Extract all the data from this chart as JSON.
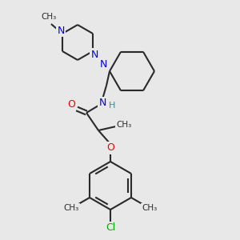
{
  "bg_color": "#e8e8e8",
  "bond_color": "#2a2a2a",
  "N_color": "#0000ee",
  "O_color": "#ee0000",
  "Cl_color": "#00aa00",
  "H_color": "#448888",
  "lw": 1.5,
  "figsize": [
    3.0,
    3.0
  ],
  "dpi": 100,
  "xlim": [
    0,
    300
  ],
  "ylim": [
    0,
    300
  ]
}
